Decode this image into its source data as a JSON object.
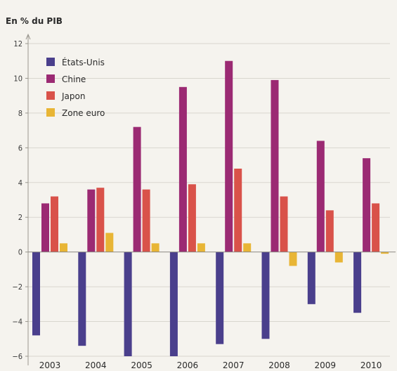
{
  "chart_data": {
    "type": "bar",
    "ylabel": "En % du PIB",
    "categories": [
      "2003",
      "2004",
      "2005",
      "2006",
      "2007",
      "2008",
      "2009",
      "2010"
    ],
    "ylim": [
      -6,
      12
    ],
    "yticks": [
      -6,
      -4,
      -2,
      0,
      2,
      4,
      6,
      8,
      10,
      12
    ],
    "grid": true,
    "legend_position": "top-left",
    "series": [
      {
        "name": "États-Unis",
        "color": "#4a3f8c",
        "values": [
          -4.8,
          -5.4,
          -6.0,
          -6.0,
          -5.3,
          -5.0,
          -3.0,
          -3.5
        ]
      },
      {
        "name": "Chine",
        "color": "#9b2a73",
        "values": [
          2.8,
          3.6,
          7.2,
          9.5,
          11.0,
          9.9,
          6.4,
          5.4
        ]
      },
      {
        "name": "Japon",
        "color": "#d9524a",
        "values": [
          3.2,
          3.7,
          3.6,
          3.9,
          4.8,
          3.2,
          2.4,
          2.8
        ]
      },
      {
        "name": "Zone euro",
        "color": "#e8b535",
        "values": [
          0.5,
          1.1,
          0.5,
          0.5,
          0.5,
          -0.8,
          -0.6,
          -0.1
        ]
      }
    ]
  }
}
